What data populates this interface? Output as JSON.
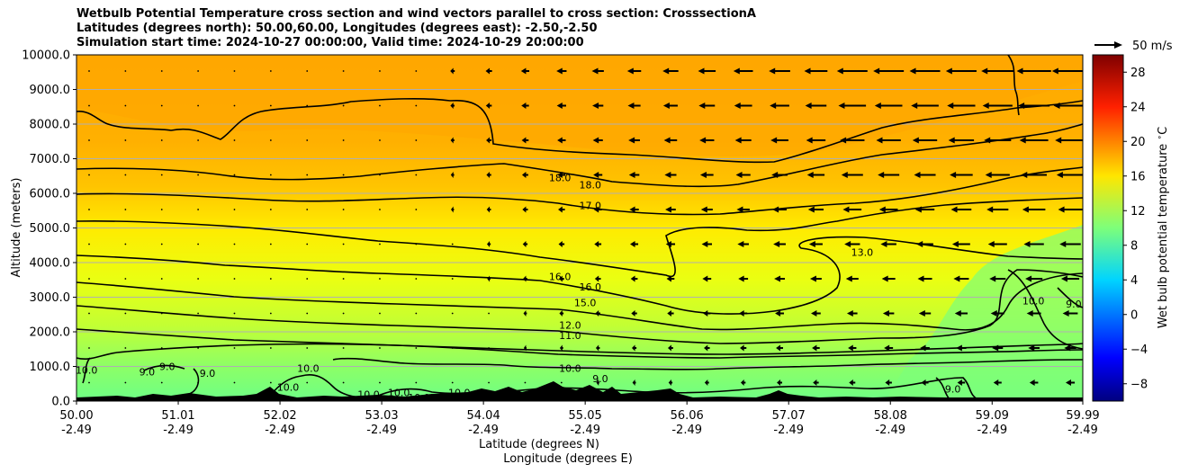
{
  "chart_data": {
    "type": "contour",
    "title_lines": [
      "Wetbulb Potential Temperature cross section and wind vectors parallel to cross section: CrosssectionA",
      "Latitudes (degrees north): 50.00,60.00, Longitudes (degrees east): -2.50,-2.50",
      "Simulation start time: 2024-10-27 00:00:00, Valid time: 2024-10-29 20:00:00"
    ],
    "ylabel": "Altitude (meters)",
    "xlabel_lines": [
      "Latitude (degrees N)",
      "Longitude (degrees E)"
    ],
    "ylim": [
      0,
      10000
    ],
    "y_ticks": [
      "0.0",
      "1000.0",
      "2000.0",
      "3000.0",
      "4000.0",
      "5000.0",
      "6000.0",
      "7000.0",
      "8000.0",
      "9000.0",
      "10000.0"
    ],
    "x_ticks": [
      {
        "lat": "50.00",
        "lon": "-2.49"
      },
      {
        "lat": "51.01",
        "lon": "-2.49"
      },
      {
        "lat": "52.02",
        "lon": "-2.49"
      },
      {
        "lat": "53.03",
        "lon": "-2.49"
      },
      {
        "lat": "54.04",
        "lon": "-2.49"
      },
      {
        "lat": "55.05",
        "lon": "-2.49"
      },
      {
        "lat": "56.06",
        "lon": "-2.49"
      },
      {
        "lat": "57.07",
        "lon": "-2.49"
      },
      {
        "lat": "58.08",
        "lon": "-2.49"
      },
      {
        "lat": "59.09",
        "lon": "-2.49"
      },
      {
        "lat": "59.99",
        "lon": "-2.49"
      }
    ],
    "colorbar": {
      "label": "Wet bulb potential temperature $^\\circ$C",
      "range": [
        -10,
        30
      ],
      "ticks": [
        "-8",
        "-4",
        "0",
        "4",
        "8",
        "12",
        "16",
        "20",
        "24",
        "28"
      ],
      "colormap": "jet"
    },
    "quiver_key": "50 m/s",
    "grid": true,
    "contour_labels": [
      {
        "text": "18.0",
        "lat": 54.8,
        "alt": 6450
      },
      {
        "text": "18.0",
        "lat": 55.1,
        "alt": 6250
      },
      {
        "text": "17.0",
        "lat": 55.1,
        "alt": 5650
      },
      {
        "text": "16.0",
        "lat": 54.8,
        "alt": 3600
      },
      {
        "text": "16.0",
        "lat": 55.1,
        "alt": 3300
      },
      {
        "text": "15.0",
        "lat": 55.05,
        "alt": 2850
      },
      {
        "text": "12.0",
        "lat": 54.9,
        "alt": 2200
      },
      {
        "text": "11.0",
        "lat": 54.9,
        "alt": 1900
      },
      {
        "text": "10.0",
        "lat": 54.9,
        "alt": 950
      },
      {
        "text": "13.0",
        "lat": 57.8,
        "alt": 4300
      },
      {
        "text": "10.0",
        "lat": 59.5,
        "alt": 2900
      },
      {
        "text": "9.0",
        "lat": 59.9,
        "alt": 2800
      },
      {
        "text": "10.0",
        "lat": 50.1,
        "alt": 900
      },
      {
        "text": "9.0",
        "lat": 50.9,
        "alt": 1000
      },
      {
        "text": "9.0",
        "lat": 50.7,
        "alt": 850
      },
      {
        "text": "9.0",
        "lat": 51.3,
        "alt": 800
      },
      {
        "text": "10.0",
        "lat": 52.3,
        "alt": 950
      },
      {
        "text": "10.0",
        "lat": 52.1,
        "alt": 400
      },
      {
        "text": "10.0",
        "lat": 52.9,
        "alt": 200
      },
      {
        "text": "10.0",
        "lat": 53.2,
        "alt": 250
      },
      {
        "text": "10.0",
        "lat": 53.4,
        "alt": 100
      },
      {
        "text": "10.0",
        "lat": 53.8,
        "alt": 250
      },
      {
        "text": "9.0",
        "lat": 55.2,
        "alt": 650
      },
      {
        "text": "9.0",
        "lat": 58.7,
        "alt": 350
      }
    ]
  }
}
